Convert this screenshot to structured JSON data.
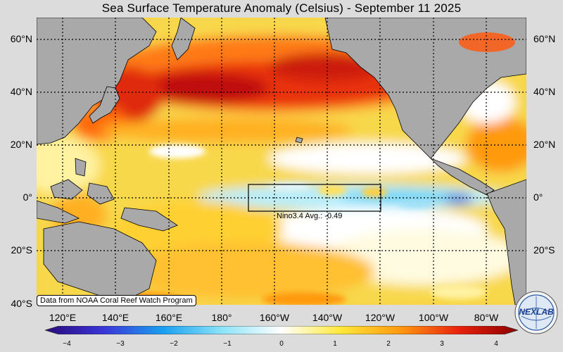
{
  "title": "Sea Surface Temperature Anomaly (Celsius) - September 11 2025",
  "lat_labels": [
    "60°N",
    "40°N",
    "20°N",
    "0°",
    "20°S",
    "40°S"
  ],
  "lon_labels": [
    "120°E",
    "140°E",
    "160°E",
    "180°",
    "160°W",
    "140°W",
    "120°W",
    "100°W",
    "80°W"
  ],
  "nino_label": "Nino3.4 Avg.: -0.49",
  "credit": "Data from NOAA Coral Reef Watch Program",
  "colorbar": {
    "ticks": [
      "−4",
      "−3",
      "−2",
      "−1",
      "0",
      "1",
      "2",
      "3",
      "4"
    ],
    "colors": [
      "#2a0a7a",
      "#3a36d8",
      "#1aa0f0",
      "#8de4f8",
      "#ffffff",
      "#ffe83a",
      "#ff9a10",
      "#e8220e",
      "#8a0000"
    ]
  },
  "logo": "NEXLAB",
  "colors": {
    "land": "#a9a9a9",
    "background": "#dcdcdc"
  }
}
